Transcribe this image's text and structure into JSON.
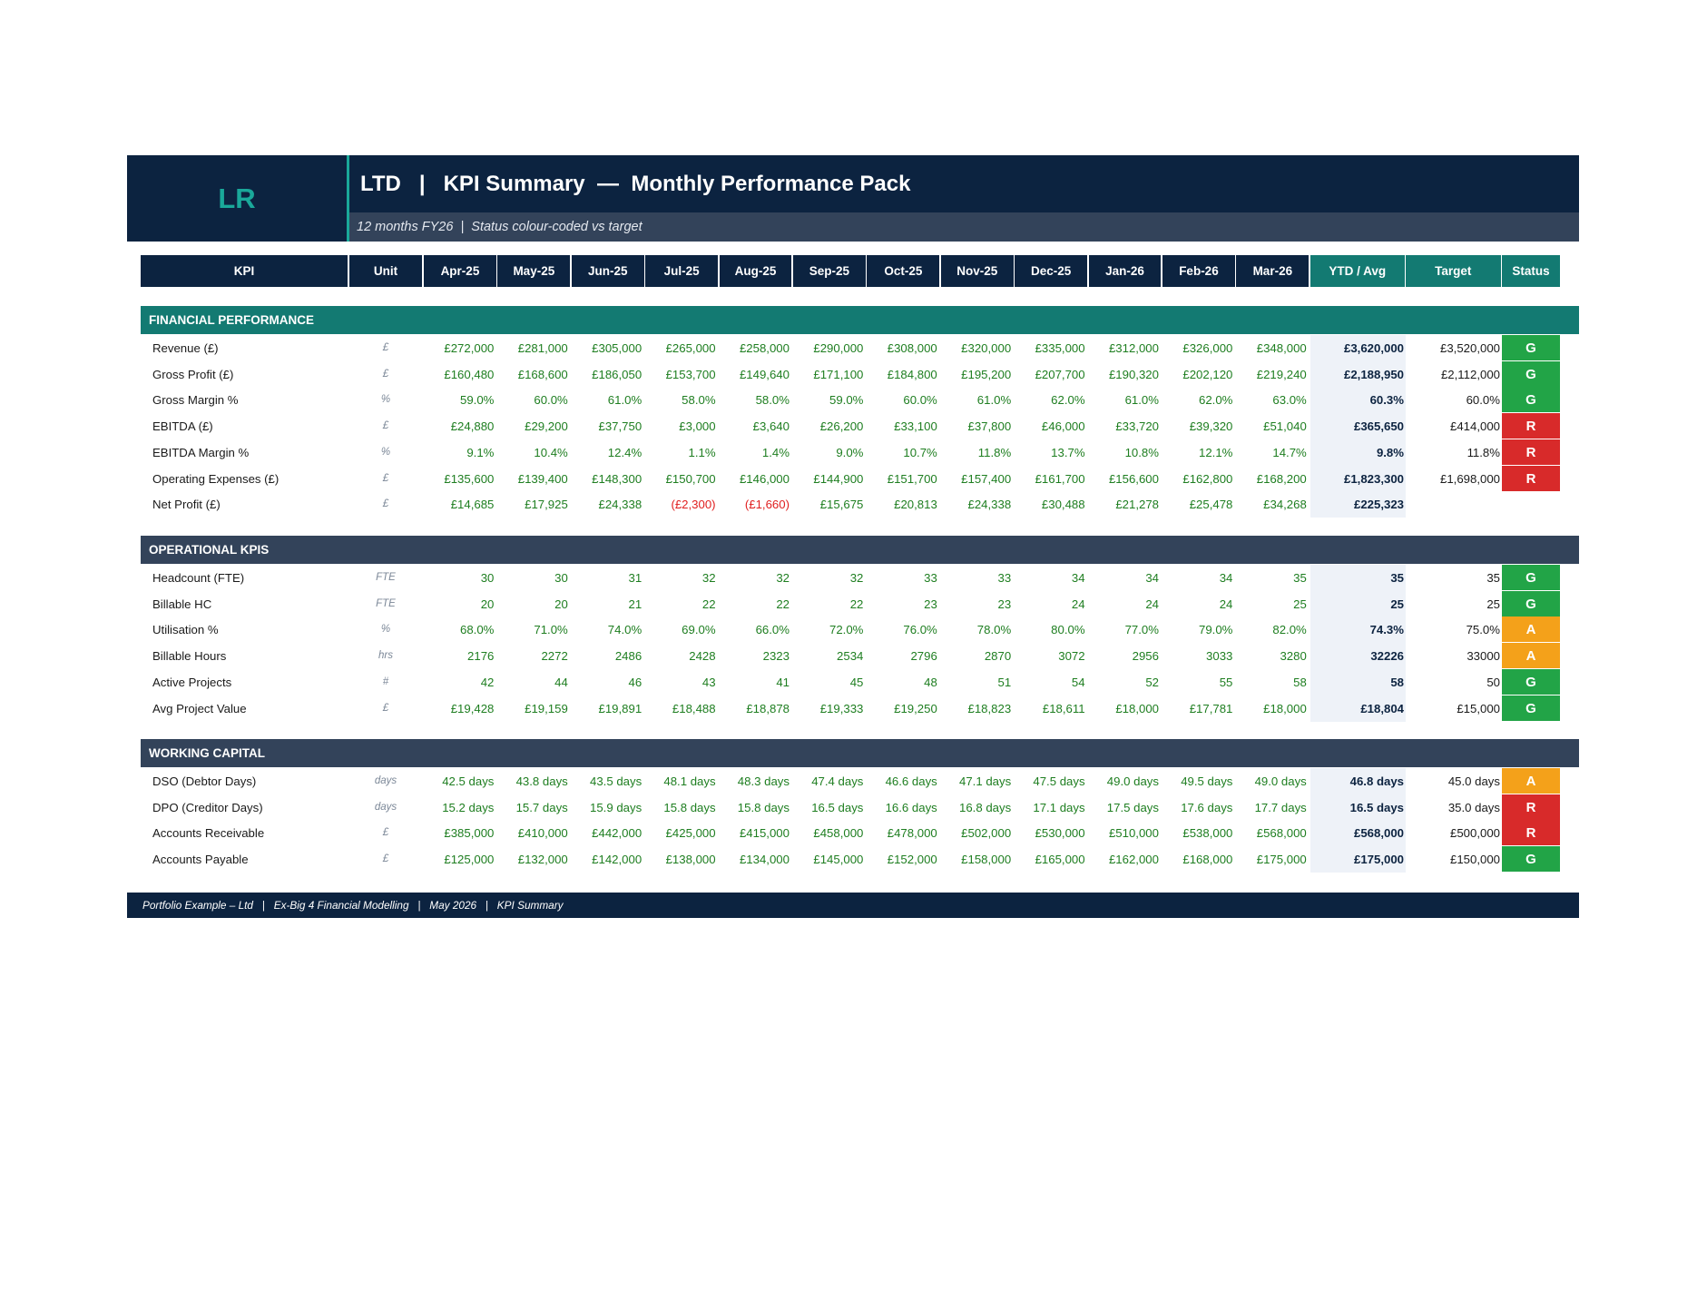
{
  "header": {
    "logo": "LR",
    "title": "LTD   |   KPI Summary  —  Monthly Performance Pack",
    "subtitle": "12 months FY26  |  Status colour-coded vs target"
  },
  "columns": {
    "kpi": "KPI",
    "unit": "Unit",
    "months": [
      "Apr-25",
      "May-25",
      "Jun-25",
      "Jul-25",
      "Aug-25",
      "Sep-25",
      "Oct-25",
      "Nov-25",
      "Dec-25",
      "Jan-26",
      "Feb-26",
      "Mar-26"
    ],
    "ytd": "YTD / Avg",
    "target": "Target",
    "status": "Status"
  },
  "sections": [
    {
      "title": "FINANCIAL PERFORMANCE",
      "style": "teal",
      "rows": [
        {
          "label": "Revenue (£)",
          "unit": "£",
          "values": [
            "£272,000",
            "£281,000",
            "£305,000",
            "£265,000",
            "£258,000",
            "£290,000",
            "£308,000",
            "£320,000",
            "£335,000",
            "£312,000",
            "£326,000",
            "£348,000"
          ],
          "ytd": "£3,620,000",
          "target": "£3,520,000",
          "status": "G"
        },
        {
          "label": "Gross Profit (£)",
          "unit": "£",
          "values": [
            "£160,480",
            "£168,600",
            "£186,050",
            "£153,700",
            "£149,640",
            "£171,100",
            "£184,800",
            "£195,200",
            "£207,700",
            "£190,320",
            "£202,120",
            "£219,240"
          ],
          "ytd": "£2,188,950",
          "target": "£2,112,000",
          "status": "G"
        },
        {
          "label": "Gross Margin %",
          "unit": "%",
          "values": [
            "59.0%",
            "60.0%",
            "61.0%",
            "58.0%",
            "58.0%",
            "59.0%",
            "60.0%",
            "61.0%",
            "62.0%",
            "61.0%",
            "62.0%",
            "63.0%"
          ],
          "ytd": "60.3%",
          "target": "60.0%",
          "status": "G"
        },
        {
          "label": "EBITDA (£)",
          "unit": "£",
          "values": [
            "£24,880",
            "£29,200",
            "£37,750",
            "£3,000",
            "£3,640",
            "£26,200",
            "£33,100",
            "£37,800",
            "£46,000",
            "£33,720",
            "£39,320",
            "£51,040"
          ],
          "ytd": "£365,650",
          "target": "£414,000",
          "status": "R"
        },
        {
          "label": "EBITDA Margin %",
          "unit": "%",
          "values": [
            "9.1%",
            "10.4%",
            "12.4%",
            "1.1%",
            "1.4%",
            "9.0%",
            "10.7%",
            "11.8%",
            "13.7%",
            "10.8%",
            "12.1%",
            "14.7%"
          ],
          "ytd": "9.8%",
          "target": "11.8%",
          "status": "R"
        },
        {
          "label": "Operating Expenses (£)",
          "unit": "£",
          "values": [
            "£135,600",
            "£139,400",
            "£148,300",
            "£150,700",
            "£146,000",
            "£144,900",
            "£151,700",
            "£157,400",
            "£161,700",
            "£156,600",
            "£162,800",
            "£168,200"
          ],
          "ytd": "£1,823,300",
          "target": "£1,698,000",
          "status": "R"
        },
        {
          "label": "Net Profit (£)",
          "unit": "£",
          "values": [
            "£14,685",
            "£17,925",
            "£24,338",
            "(£2,300)",
            "(£1,660)",
            "£15,675",
            "£20,813",
            "£24,338",
            "£30,488",
            "£21,278",
            "£25,478",
            "£34,268"
          ],
          "ytd": "£225,323",
          "target": "",
          "status": ""
        }
      ]
    },
    {
      "title": "OPERATIONAL KPIS",
      "style": "slate",
      "rows": [
        {
          "label": "Headcount (FTE)",
          "unit": "FTE",
          "values": [
            "30",
            "30",
            "31",
            "32",
            "32",
            "32",
            "33",
            "33",
            "34",
            "34",
            "34",
            "35"
          ],
          "ytd": "35",
          "target": "35",
          "status": "G"
        },
        {
          "label": "Billable HC",
          "unit": "FTE",
          "values": [
            "20",
            "20",
            "21",
            "22",
            "22",
            "22",
            "23",
            "23",
            "24",
            "24",
            "24",
            "25"
          ],
          "ytd": "25",
          "target": "25",
          "status": "G"
        },
        {
          "label": "Utilisation %",
          "unit": "%",
          "values": [
            "68.0%",
            "71.0%",
            "74.0%",
            "69.0%",
            "66.0%",
            "72.0%",
            "76.0%",
            "78.0%",
            "80.0%",
            "77.0%",
            "79.0%",
            "82.0%"
          ],
          "ytd": "74.3%",
          "target": "75.0%",
          "status": "A"
        },
        {
          "label": "Billable Hours",
          "unit": "hrs",
          "values": [
            "2176",
            "2272",
            "2486",
            "2428",
            "2323",
            "2534",
            "2796",
            "2870",
            "3072",
            "2956",
            "3033",
            "3280"
          ],
          "ytd": "32226",
          "target": "33000",
          "status": "A"
        },
        {
          "label": "Active Projects",
          "unit": "#",
          "values": [
            "42",
            "44",
            "46",
            "43",
            "41",
            "45",
            "48",
            "51",
            "54",
            "52",
            "55",
            "58"
          ],
          "ytd": "58",
          "target": "50",
          "status": "G"
        },
        {
          "label": "Avg Project Value",
          "unit": "£",
          "values": [
            "£19,428",
            "£19,159",
            "£19,891",
            "£18,488",
            "£18,878",
            "£19,333",
            "£19,250",
            "£18,823",
            "£18,611",
            "£18,000",
            "£17,781",
            "£18,000"
          ],
          "ytd": "£18,804",
          "target": "£15,000",
          "status": "G"
        }
      ]
    },
    {
      "title": "WORKING CAPITAL",
      "style": "slate",
      "rows": [
        {
          "label": "DSO (Debtor Days)",
          "unit": "days",
          "values": [
            "42.5 days",
            "43.8 days",
            "43.5 days",
            "48.1 days",
            "48.3 days",
            "47.4 days",
            "46.6 days",
            "47.1 days",
            "47.5 days",
            "49.0 days",
            "49.5 days",
            "49.0 days"
          ],
          "ytd": "46.8 days",
          "target": "45.0 days",
          "status": "A"
        },
        {
          "label": "DPO (Creditor Days)",
          "unit": "days",
          "values": [
            "15.2 days",
            "15.7 days",
            "15.9 days",
            "15.8 days",
            "15.8 days",
            "16.5 days",
            "16.6 days",
            "16.8 days",
            "17.1 days",
            "17.5 days",
            "17.6 days",
            "17.7 days"
          ],
          "ytd": "16.5 days",
          "target": "35.0 days",
          "status": "R"
        },
        {
          "label": "Accounts Receivable",
          "unit": "£",
          "values": [
            "£385,000",
            "£410,000",
            "£442,000",
            "£425,000",
            "£415,000",
            "£458,000",
            "£478,000",
            "£502,000",
            "£530,000",
            "£510,000",
            "£538,000",
            "£568,000"
          ],
          "ytd": "£568,000",
          "target": "£500,000",
          "status": "R"
        },
        {
          "label": "Accounts Payable",
          "unit": "£",
          "values": [
            "£125,000",
            "£132,000",
            "£142,000",
            "£138,000",
            "£134,000",
            "£145,000",
            "£152,000",
            "£158,000",
            "£165,000",
            "£162,000",
            "£168,000",
            "£175,000"
          ],
          "ytd": "£175,000",
          "target": "£150,000",
          "status": "G"
        }
      ]
    }
  ],
  "footer": "Portfolio Example – Ltd   |   Ex-Big 4 Financial Modelling   |   May 2026   |   KPI Summary",
  "colors": {
    "navy": "#0c2340",
    "teal": "#137a72",
    "slate": "#33435a",
    "green_text": "#1e7e20",
    "negative": "#e01e1e",
    "status_green": "#22a447",
    "status_amber": "#f4a11a",
    "status_red": "#d82a2a"
  }
}
